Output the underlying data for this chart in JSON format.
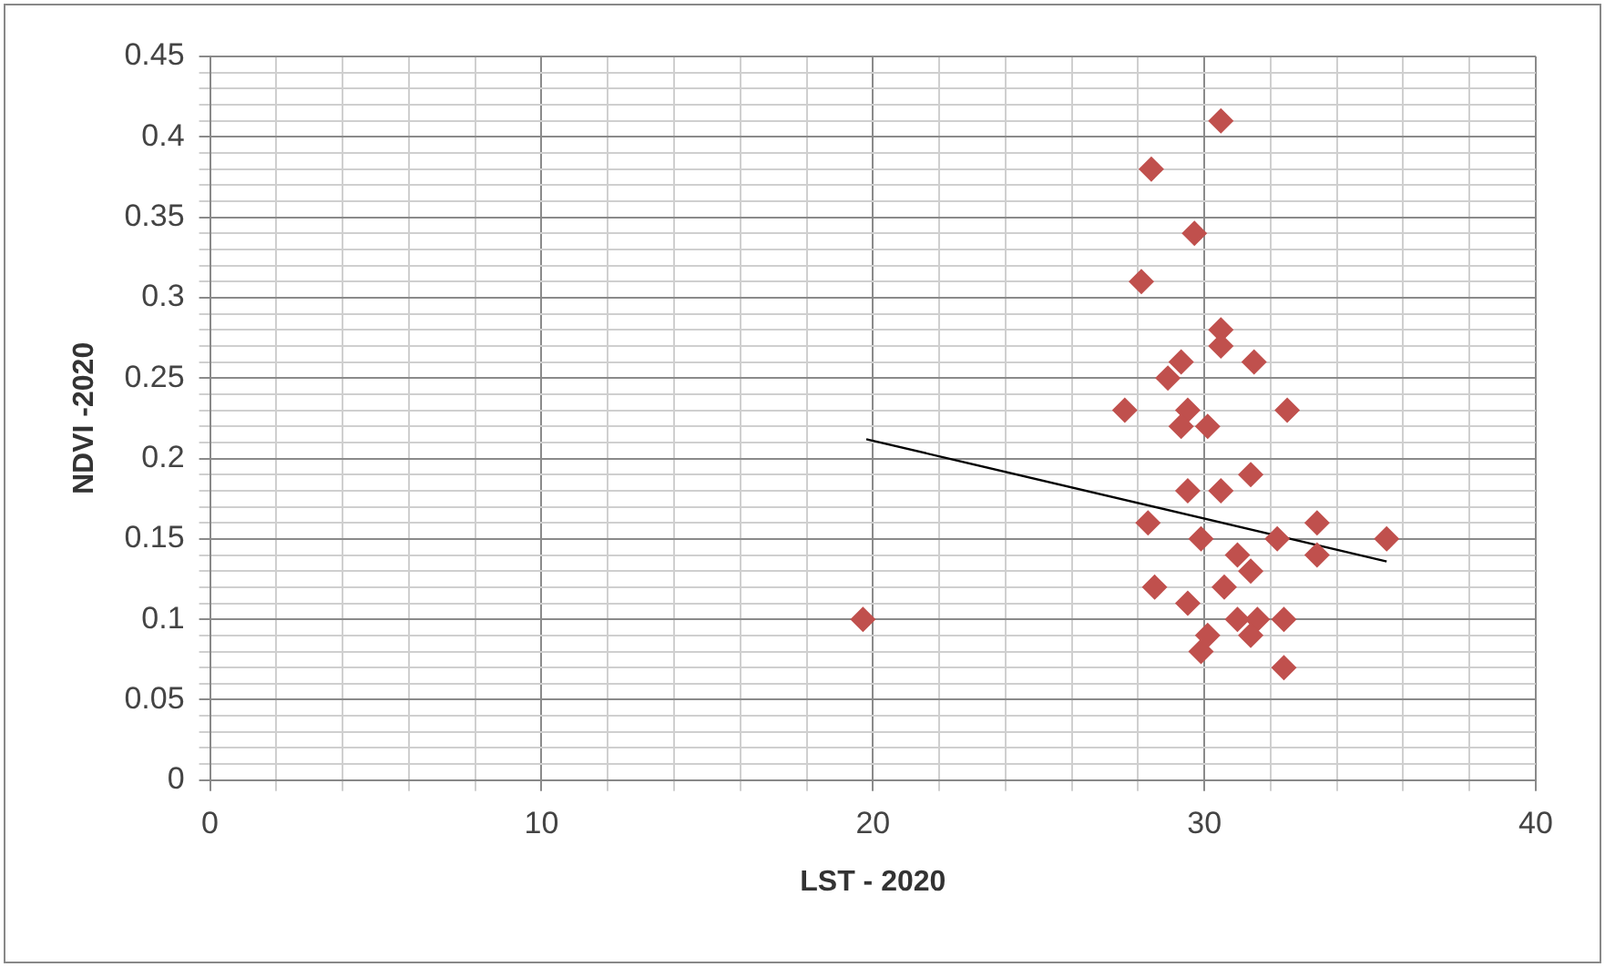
{
  "chart_data": {
    "type": "scatter",
    "xlabel": "LST - 2020",
    "ylabel": "NDVI -2020",
    "grid": true,
    "legend": false,
    "xlim": [
      0,
      40
    ],
    "xticks": [
      0,
      {
        "value": 2,
        "label": null
      },
      {
        "value": 4,
        "label": null
      },
      {
        "value": 6,
        "label": null
      },
      {
        "value": 8,
        "label": null
      },
      10,
      {
        "value": 12,
        "label": null
      },
      {
        "value": 14,
        "label": null
      },
      {
        "value": 16,
        "label": null
      },
      {
        "value": 18,
        "label": null
      },
      20,
      {
        "value": 22,
        "label": null
      },
      {
        "value": 24,
        "label": null
      },
      {
        "value": 26,
        "label": null
      },
      {
        "value": 28,
        "label": null
      },
      30,
      {
        "value": 32,
        "label": null
      },
      {
        "value": 34,
        "label": null
      },
      {
        "value": 36,
        "label": null
      },
      {
        "value": 38,
        "label": null
      },
      40
    ],
    "ylim": [
      0,
      0.45
    ],
    "yticks": [
      0,
      {
        "value": 0.01,
        "label": null
      },
      {
        "value": 0.02,
        "label": null
      },
      {
        "value": 0.03,
        "label": null
      },
      {
        "value": 0.04,
        "label": null
      },
      0.05,
      {
        "value": 0.06,
        "label": null
      },
      {
        "value": 0.07,
        "label": null
      },
      {
        "value": 0.08,
        "label": null
      },
      {
        "value": 0.09,
        "label": null
      },
      0.1,
      {
        "value": 0.11,
        "label": null
      },
      {
        "value": 0.12,
        "label": null
      },
      {
        "value": 0.13,
        "label": null
      },
      {
        "value": 0.14,
        "label": null
      },
      0.15,
      {
        "value": 0.16,
        "label": null
      },
      {
        "value": 0.17,
        "label": null
      },
      {
        "value": 0.18,
        "label": null
      },
      {
        "value": 0.19,
        "label": null
      },
      0.2,
      {
        "value": 0.21,
        "label": null
      },
      {
        "value": 0.22,
        "label": null
      },
      {
        "value": 0.23,
        "label": null
      },
      {
        "value": 0.24,
        "label": null
      },
      0.25,
      {
        "value": 0.26,
        "label": null
      },
      {
        "value": 0.27,
        "label": null
      },
      {
        "value": 0.28,
        "label": null
      },
      {
        "value": 0.29,
        "label": null
      },
      0.3,
      {
        "value": 0.31,
        "label": null
      },
      {
        "value": 0.32,
        "label": null
      },
      {
        "value": 0.33,
        "label": null
      },
      {
        "value": 0.34,
        "label": null
      },
      0.35,
      {
        "value": 0.36,
        "label": null
      },
      {
        "value": 0.37,
        "label": null
      },
      {
        "value": 0.38,
        "label": null
      },
      {
        "value": 0.39,
        "label": null
      },
      0.4,
      {
        "value": 0.41,
        "label": null
      },
      {
        "value": 0.42,
        "label": null
      },
      {
        "value": 0.43,
        "label": null
      },
      {
        "value": 0.44,
        "label": null
      },
      0.45
    ],
    "series": [
      {
        "type": "scatter",
        "color": "#c0504d",
        "marker": "diamond",
        "x": [
          30.5,
          28.4,
          29.7,
          28.1,
          30.5,
          30.5,
          31.5,
          29.3,
          28.9,
          27.6,
          32.5,
          29.5,
          30.1,
          29.3,
          19.7,
          31.4,
          29.5,
          30.5,
          28.3,
          33.4,
          35.5,
          29.9,
          31.0,
          32.2,
          33.4,
          28.5,
          30.6,
          31.4,
          29.5,
          32.4,
          31.6,
          29.9,
          30.1,
          31.4,
          32.4,
          31.0
        ],
        "values": [
          0.41,
          0.38,
          0.34,
          0.31,
          0.28,
          0.27,
          0.26,
          0.26,
          0.25,
          0.23,
          0.23,
          0.23,
          0.22,
          0.22,
          0.1,
          0.19,
          0.18,
          0.18,
          0.16,
          0.16,
          0.15,
          0.15,
          0.14,
          0.15,
          0.14,
          0.12,
          0.12,
          0.13,
          0.11,
          0.1,
          0.1,
          0.08,
          0.09,
          0.09,
          0.07,
          0.1
        ]
      },
      {
        "type": "line",
        "color": "#000000",
        "marker": "none",
        "line_style": "solid",
        "x": [
          19.8,
          35.5
        ],
        "values": [
          0.212,
          0.136
        ]
      }
    ]
  }
}
